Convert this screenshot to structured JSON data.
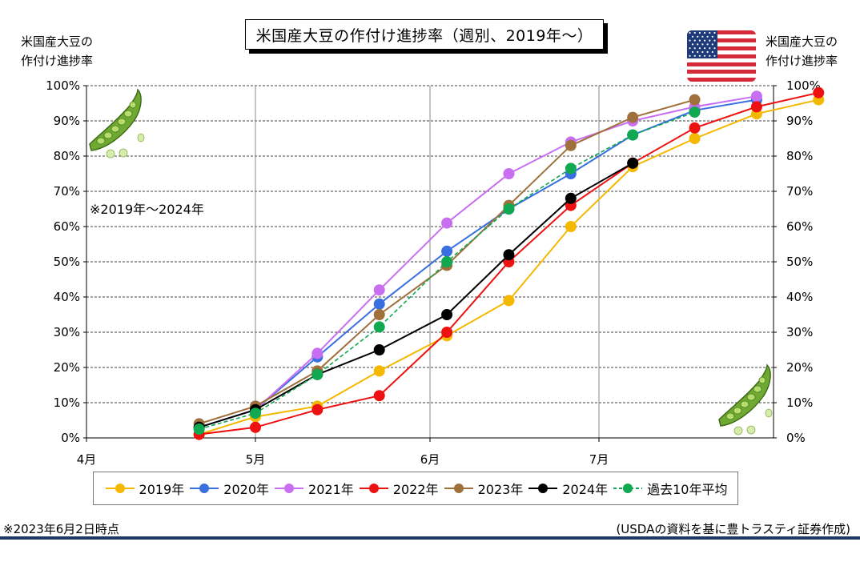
{
  "title": "米国産大豆の作付け進捗率（週別、2019年～）",
  "axis_title_left": [
    "米国産大豆の",
    "作付け進捗率"
  ],
  "axis_title_right": [
    "米国産大豆の",
    "作付け進捗率"
  ],
  "note_range": "※2019年～2024年",
  "footer_note": "※2023年6月2日時点",
  "footer_source": "(USDAの資料を基に豊トラスティ証券作成)",
  "icons": {
    "flag": "us-flag-icon",
    "pod": "soybean-pod-icon"
  },
  "chart_data": {
    "type": "line",
    "x_axis": {
      "type": "date",
      "range": [
        "04-01",
        "08-01"
      ],
      "ticks": [
        "4月",
        "5月",
        "6月",
        "7月"
      ],
      "tick_dates": [
        "04-01",
        "05-01",
        "06-01",
        "07-01"
      ]
    },
    "y_axis": {
      "range": [
        0,
        100
      ],
      "step": 10,
      "unit": "%"
    },
    "grid": "horizontal dashed, vertical solid at month starts",
    "legend_position": "bottom",
    "series": [
      {
        "name": "2019年",
        "color": "#f5b800",
        "dash": false,
        "points": [
          [
            "04-21",
            1
          ],
          [
            "05-01",
            6
          ],
          [
            "05-12",
            9
          ],
          [
            "05-23",
            19
          ],
          [
            "06-04",
            29
          ],
          [
            "06-15",
            39
          ],
          [
            "06-26",
            60
          ],
          [
            "07-07",
            77
          ],
          [
            "07-18",
            85
          ],
          [
            "07-29",
            92
          ],
          [
            "08-09",
            96
          ]
        ]
      },
      {
        "name": "2020年",
        "color": "#3a6fe0",
        "dash": false,
        "points": [
          [
            "04-21",
            3
          ],
          [
            "05-01",
            8
          ],
          [
            "05-12",
            23
          ],
          [
            "05-23",
            38
          ],
          [
            "06-04",
            53
          ],
          [
            "06-15",
            65
          ],
          [
            "06-26",
            75
          ],
          [
            "07-07",
            86
          ],
          [
            "07-18",
            93
          ],
          [
            "07-29",
            96
          ]
        ]
      },
      {
        "name": "2021年",
        "color": "#c86ef0",
        "dash": false,
        "points": [
          [
            "04-21",
            3
          ],
          [
            "05-01",
            8
          ],
          [
            "05-12",
            24
          ],
          [
            "05-23",
            42
          ],
          [
            "06-04",
            61
          ],
          [
            "06-15",
            75
          ],
          [
            "06-26",
            84
          ],
          [
            "07-07",
            90
          ],
          [
            "07-18",
            94
          ],
          [
            "07-29",
            97
          ]
        ]
      },
      {
        "name": "2022年",
        "color": "#ee1111",
        "dash": false,
        "points": [
          [
            "04-21",
            1
          ],
          [
            "05-01",
            3
          ],
          [
            "05-12",
            8
          ],
          [
            "05-23",
            12
          ],
          [
            "06-04",
            30
          ],
          [
            "06-15",
            50
          ],
          [
            "06-26",
            66
          ],
          [
            "07-07",
            78
          ],
          [
            "07-18",
            88
          ],
          [
            "07-29",
            94
          ],
          [
            "08-09",
            98
          ]
        ]
      },
      {
        "name": "2023年",
        "color": "#a0703c",
        "dash": false,
        "points": [
          [
            "04-21",
            4
          ],
          [
            "05-01",
            9
          ],
          [
            "05-12",
            19
          ],
          [
            "05-23",
            35
          ],
          [
            "06-04",
            49
          ],
          [
            "06-15",
            66
          ],
          [
            "06-26",
            83
          ],
          [
            "07-07",
            91
          ],
          [
            "07-18",
            96
          ]
        ]
      },
      {
        "name": "2024年",
        "color": "#000000",
        "dash": false,
        "points": [
          [
            "04-21",
            3
          ],
          [
            "05-01",
            8
          ],
          [
            "05-12",
            18
          ],
          [
            "05-23",
            25
          ],
          [
            "06-04",
            35
          ],
          [
            "06-15",
            52
          ],
          [
            "06-26",
            68
          ],
          [
            "07-07",
            78
          ]
        ]
      },
      {
        "name": "過去10年平均",
        "color": "#10a850",
        "dash": true,
        "points": [
          [
            "04-21",
            2.5
          ],
          [
            "05-01",
            7
          ],
          [
            "05-12",
            18
          ],
          [
            "05-23",
            31.5
          ],
          [
            "06-04",
            50
          ],
          [
            "06-15",
            65
          ],
          [
            "06-26",
            76.5
          ],
          [
            "07-07",
            86
          ],
          [
            "07-18",
            92.5
          ]
        ]
      }
    ]
  }
}
